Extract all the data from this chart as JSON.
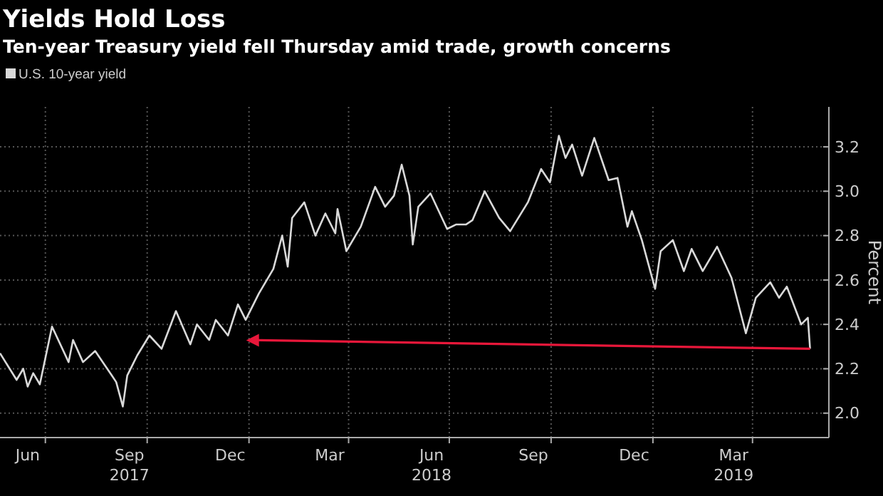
{
  "chart_data": {
    "type": "line",
    "title": "Yields Hold Loss",
    "subtitle": "Ten-year Treasury yield fell Thursday amid trade, growth concerns",
    "ylabel": "Percent",
    "series": [
      {
        "name": "U.S. 10-year yield",
        "color": "#d9d9d9",
        "x": [
          "2017-05-21",
          "2017-06-05",
          "2017-06-11",
          "2017-06-15",
          "2017-06-20",
          "2017-06-26",
          "2017-07-07",
          "2017-07-22",
          "2017-07-26",
          "2017-08-04",
          "2017-08-15",
          "2017-08-30",
          "2017-09-03",
          "2017-09-09",
          "2017-09-13",
          "2017-09-22",
          "2017-10-03",
          "2017-10-14",
          "2017-10-27",
          "2017-11-09",
          "2017-11-15",
          "2017-11-26",
          "2017-12-02",
          "2017-12-13",
          "2017-12-22",
          "2017-12-29",
          "2018-01-10",
          "2018-01-23",
          "2018-01-31",
          "2018-02-05",
          "2018-02-09",
          "2018-02-20",
          "2018-03-02",
          "2018-03-11",
          "2018-03-20",
          "2018-03-22",
          "2018-03-30",
          "2018-04-12",
          "2018-04-25",
          "2018-05-04",
          "2018-05-12",
          "2018-05-19",
          "2018-05-26",
          "2018-05-29",
          "2018-06-03",
          "2018-06-14",
          "2018-06-29",
          "2018-07-07",
          "2018-07-16",
          "2018-07-22",
          "2018-08-02",
          "2018-08-15",
          "2018-08-25",
          "2018-09-10",
          "2018-09-22",
          "2018-09-30",
          "2018-10-08",
          "2018-10-14",
          "2018-10-20",
          "2018-10-29",
          "2018-11-09",
          "2018-11-22",
          "2018-11-30",
          "2018-12-09",
          "2018-12-13",
          "2018-12-22",
          "2019-01-03",
          "2019-01-08",
          "2019-01-19",
          "2019-01-29",
          "2019-02-05",
          "2019-02-15",
          "2019-02-28",
          "2019-03-13",
          "2019-03-26",
          "2019-04-04",
          "2019-04-17",
          "2019-04-25",
          "2019-05-02",
          "2019-05-15",
          "2019-05-21",
          "2019-05-23"
        ],
        "values": [
          2.27,
          2.15,
          2.2,
          2.12,
          2.18,
          2.13,
          2.39,
          2.23,
          2.33,
          2.23,
          2.28,
          2.17,
          2.14,
          2.03,
          2.17,
          2.26,
          2.35,
          2.29,
          2.46,
          2.31,
          2.4,
          2.33,
          2.42,
          2.35,
          2.49,
          2.42,
          2.54,
          2.65,
          2.8,
          2.66,
          2.88,
          2.95,
          2.8,
          2.9,
          2.81,
          2.92,
          2.73,
          2.84,
          3.02,
          2.93,
          2.98,
          3.12,
          2.98,
          2.76,
          2.93,
          2.99,
          2.83,
          2.85,
          2.85,
          2.87,
          3.0,
          2.88,
          2.82,
          2.95,
          3.1,
          3.04,
          3.25,
          3.15,
          3.21,
          3.07,
          3.24,
          3.05,
          3.06,
          2.84,
          2.91,
          2.78,
          2.56,
          2.73,
          2.78,
          2.64,
          2.74,
          2.64,
          2.75,
          2.61,
          2.36,
          2.52,
          2.59,
          2.52,
          2.57,
          2.4,
          2.43,
          2.29
        ]
      }
    ],
    "xlim": [
      "2017-05-21",
      "2019-06-09"
    ],
    "xticks": [
      {
        "value": "2017-06-15",
        "label": "Jun"
      },
      {
        "value": "2017-07-01",
        "label": null
      },
      {
        "value": "2017-09-15",
        "label": "Sep\n2017"
      },
      {
        "value": "2017-10-01",
        "label": null
      },
      {
        "value": "2017-12-15",
        "label": "Dec"
      },
      {
        "value": "2018-01-01",
        "label": null
      },
      {
        "value": "2018-03-15",
        "label": "Mar"
      },
      {
        "value": "2018-04-01",
        "label": null
      },
      {
        "value": "2018-06-15",
        "label": "Jun\n2018"
      },
      {
        "value": "2018-07-01",
        "label": null
      },
      {
        "value": "2018-09-15",
        "label": "Sep"
      },
      {
        "value": "2018-10-01",
        "label": null
      },
      {
        "value": "2018-12-15",
        "label": "Dec"
      },
      {
        "value": "2019-01-01",
        "label": null
      },
      {
        "value": "2019-03-15",
        "label": "Mar\n2019"
      },
      {
        "value": "2019-04-01",
        "label": null
      }
    ],
    "ylim": [
      1.89,
      3.38
    ],
    "yticks": [
      {
        "value": 2.0,
        "label": "2.0"
      },
      {
        "value": 2.2,
        "label": "2.2"
      },
      {
        "value": 2.4,
        "label": "2.4"
      },
      {
        "value": 2.6,
        "label": "2.6"
      },
      {
        "value": 2.8,
        "label": "2.8"
      },
      {
        "value": 3.0,
        "label": "3.0"
      },
      {
        "value": 3.2,
        "label": "3.2"
      }
    ],
    "grid": true,
    "legend": "top left",
    "line_style": "solid",
    "marker": "none"
  }
}
